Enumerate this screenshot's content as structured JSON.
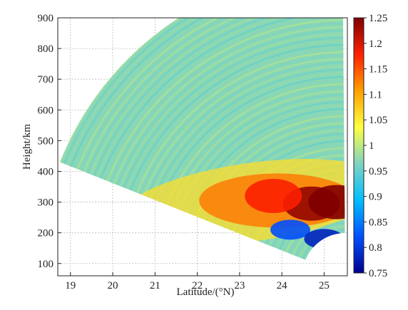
{
  "chart_data": {
    "type": "heatmap",
    "title": "",
    "xlabel": "Latitude/(°N)",
    "ylabel": "Height/km",
    "xlim": [
      18.7,
      25.55
    ],
    "ylim": [
      60,
      900
    ],
    "x_ticks": [
      "19",
      "20",
      "21",
      "22",
      "23",
      "24",
      "25"
    ],
    "y_ticks": [
      "100",
      "200",
      "300",
      "400",
      "500",
      "600",
      "700",
      "800",
      "900"
    ],
    "grid": true,
    "colorbar": {
      "min": 0.75,
      "max": 1.25,
      "ticks": [
        "0.75",
        "0.8",
        "0.85",
        "0.9",
        "0.95",
        "1",
        "1.05",
        "1.1",
        "1.15",
        "1.2",
        "1.25"
      ],
      "colormap": "jet"
    },
    "background_value": 0.97,
    "features": [
      {
        "lat": 24.7,
        "height": 295,
        "value": 1.24
      },
      {
        "lat": 25.3,
        "height": 300,
        "value": 1.25
      },
      {
        "lat": 23.8,
        "height": 320,
        "value": 1.18
      },
      {
        "lat": 24.2,
        "height": 210,
        "value": 0.82
      },
      {
        "lat": 25.0,
        "height": 180,
        "value": 0.78
      }
    ],
    "colormap_stops": [
      "#00008f",
      "#0050ff",
      "#00bfff",
      "#7fd3c0",
      "#ffff40",
      "#ff9f00",
      "#ff2000",
      "#800000"
    ]
  }
}
